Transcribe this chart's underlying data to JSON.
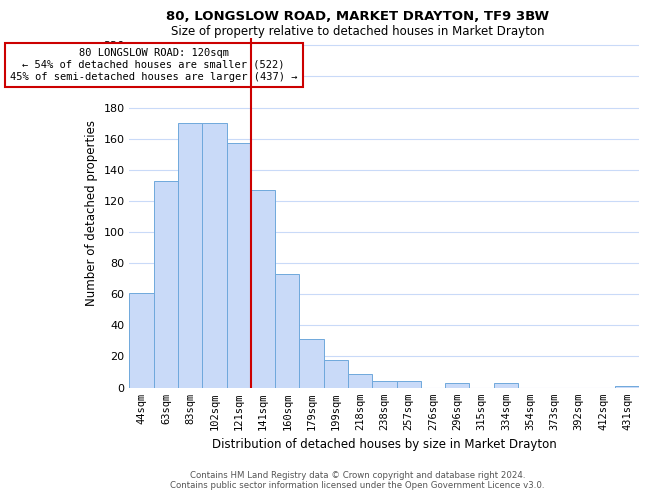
{
  "title": "80, LONGSLOW ROAD, MARKET DRAYTON, TF9 3BW",
  "subtitle": "Size of property relative to detached houses in Market Drayton",
  "xlabel": "Distribution of detached houses by size in Market Drayton",
  "ylabel": "Number of detached properties",
  "bar_labels": [
    "44sqm",
    "63sqm",
    "83sqm",
    "102sqm",
    "121sqm",
    "141sqm",
    "160sqm",
    "179sqm",
    "199sqm",
    "218sqm",
    "238sqm",
    "257sqm",
    "276sqm",
    "296sqm",
    "315sqm",
    "334sqm",
    "354sqm",
    "373sqm",
    "392sqm",
    "412sqm",
    "431sqm"
  ],
  "bar_values": [
    61,
    133,
    170,
    170,
    157,
    127,
    73,
    31,
    18,
    9,
    4,
    4,
    0,
    3,
    0,
    3,
    0,
    0,
    0,
    0,
    1
  ],
  "bar_color": "#c9daf8",
  "bar_edge_color": "#6fa8dc",
  "property_line_color": "#cc0000",
  "property_line_index": 4,
  "ylim": [
    0,
    225
  ],
  "yticks": [
    0,
    20,
    40,
    60,
    80,
    100,
    120,
    140,
    160,
    180,
    200,
    220
  ],
  "annotation_title": "80 LONGSLOW ROAD: 120sqm",
  "annotation_line1": "← 54% of detached houses are smaller (522)",
  "annotation_line2": "45% of semi-detached houses are larger (437) →",
  "annotation_box_color": "#ffffff",
  "annotation_box_edge": "#cc0000",
  "footer_line1": "Contains HM Land Registry data © Crown copyright and database right 2024.",
  "footer_line2": "Contains public sector information licensed under the Open Government Licence v3.0.",
  "background_color": "#ffffff",
  "grid_color": "#c9daf8"
}
